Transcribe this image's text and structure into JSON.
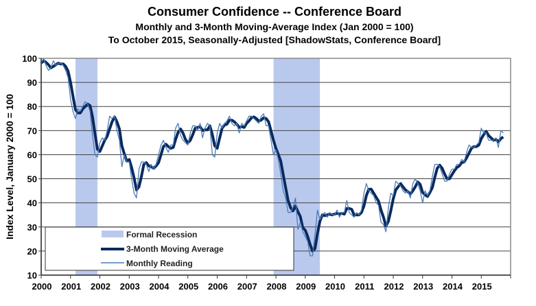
{
  "chart_data": {
    "type": "line",
    "title": "Consumer Confidence -- Conference Board",
    "subtitle_lines": [
      "Monthly and 3-Month Moving-Average Index (Jan 2000 = 100)",
      "To October 2015, Seasonally-Adjusted [ShadowStats, Conference Board]"
    ],
    "xlabel": "",
    "ylabel": "Index Level, January 2000 = 100",
    "xlim": [
      2000,
      2016
    ],
    "ylim": [
      10,
      100
    ],
    "x_ticks": [
      "2000",
      "2001",
      "2002",
      "2003",
      "2004",
      "2005",
      "2006",
      "2007",
      "2008",
      "2009",
      "2010",
      "2011",
      "2012",
      "2013",
      "2014",
      "2015"
    ],
    "y_ticks": [
      100,
      90,
      80,
      70,
      60,
      50,
      40,
      30,
      20,
      10
    ],
    "grid": "horizontal",
    "legend_position": "bottom-left",
    "start": "2000-01",
    "frequency": "monthly",
    "recessions": [
      {
        "name": "Formal Recession",
        "start": 2001.17,
        "end": 2001.92
      },
      {
        "name": "Formal Recession",
        "start": 2007.92,
        "end": 2009.5
      }
    ],
    "series": [
      {
        "name": "Monthly Reading",
        "color": "#4a7ab8",
        "values": [
          98,
          100,
          97,
          95,
          96,
          99,
          97,
          98,
          98,
          97,
          95,
          92,
          83,
          78,
          75,
          79,
          78,
          80,
          82,
          81,
          78,
          68,
          60,
          59,
          65,
          67,
          66,
          70,
          76,
          75,
          76,
          70,
          66,
          55,
          60,
          57,
          57,
          50,
          44,
          42,
          54,
          57,
          57,
          56,
          53,
          56,
          54,
          56,
          60,
          64,
          66,
          63,
          61,
          64,
          64,
          71,
          73,
          68,
          66,
          65,
          64,
          69,
          72,
          72,
          70,
          73,
          67,
          71,
          73,
          72,
          60,
          59,
          69,
          73,
          71,
          73,
          74,
          76,
          73,
          72,
          73,
          69,
          73,
          72,
          74,
          76,
          76,
          75,
          74,
          73,
          76,
          77,
          72,
          72,
          66,
          60,
          62,
          58,
          52,
          45,
          42,
          36,
          36,
          38,
          42,
          29,
          32,
          28,
          26,
          24,
          18,
          18,
          27,
          37,
          33,
          35,
          36,
          34,
          36,
          35,
          35,
          37,
          34,
          36,
          36,
          41,
          36,
          35,
          34,
          36,
          35,
          37,
          44,
          48,
          45,
          44,
          43,
          40,
          39,
          32,
          31,
          28,
          38,
          44,
          43,
          49,
          48,
          47,
          45,
          44,
          45,
          42,
          48,
          50,
          48,
          45,
          40,
          45,
          43,
          45,
          51,
          56,
          56,
          55,
          52,
          49,
          49,
          52,
          54,
          54,
          56,
          56,
          58,
          57,
          61,
          64,
          63,
          63,
          64,
          65,
          71,
          69,
          69,
          66,
          66,
          66,
          67,
          63,
          70,
          69
        ]
      },
      {
        "name": "3-Month Moving Average",
        "color": "#0a2a5e",
        "computed_from": "Monthly Reading"
      }
    ],
    "legend": [
      "Formal Recession",
      "3-Month Moving Average",
      "Monthly Reading"
    ],
    "colors": {
      "recession": "#b9c9ee",
      "grid": "#404040",
      "monthly": "#4a7ab8",
      "average": "#0a2a5e"
    }
  }
}
